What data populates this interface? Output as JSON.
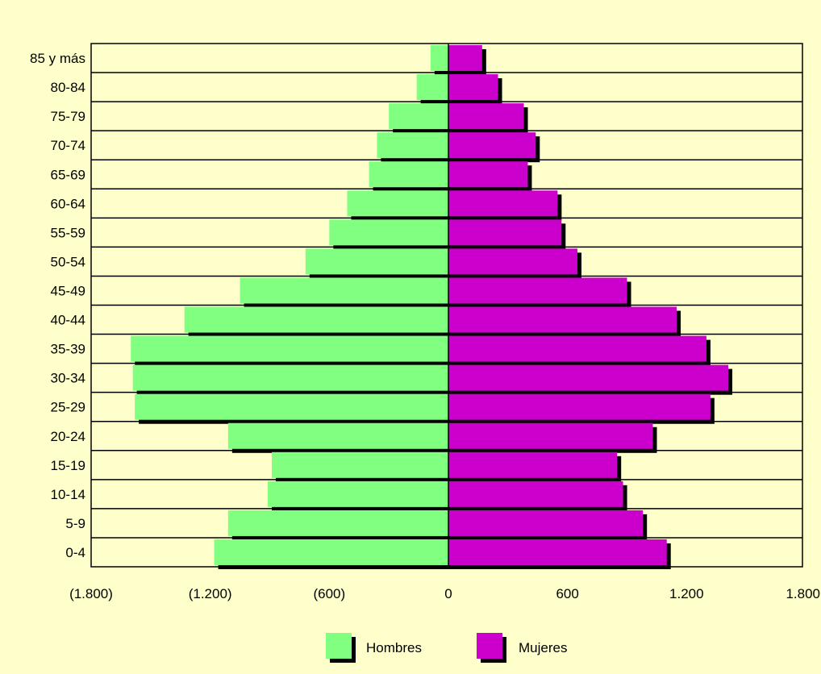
{
  "chart_data": {
    "type": "bar",
    "orientation": "horizontal",
    "title": "",
    "xlabel": "",
    "ylabel": "",
    "categories": [
      "85 y más",
      "80-84",
      "75-79",
      "70-74",
      "65-69",
      "60-64",
      "55-59",
      "50-54",
      "45-49",
      "40-44",
      "35-39",
      "30-34",
      "25-29",
      "20-24",
      "15-19",
      "10-14",
      "5-9",
      "0-4"
    ],
    "series": [
      {
        "name": "Hombres",
        "color": "#80FF80",
        "direction": "left",
        "values": [
          90,
          160,
          300,
          360,
          400,
          510,
          600,
          720,
          1050,
          1330,
          1600,
          1590,
          1580,
          1110,
          890,
          910,
          1110,
          1180
        ]
      },
      {
        "name": "Mujeres",
        "color": "#CC00CC",
        "direction": "right",
        "values": [
          170,
          250,
          380,
          440,
          400,
          550,
          570,
          650,
          900,
          1150,
          1300,
          1410,
          1320,
          1030,
          850,
          880,
          980,
          1100
        ]
      }
    ],
    "xlim": [
      -1800,
      1800
    ],
    "xticks": [
      -1800,
      -1200,
      -600,
      0,
      600,
      1200,
      1800
    ],
    "xtick_labels": [
      "(1.800)",
      "(1.200)",
      "(600)",
      "0",
      "600",
      "1.200",
      "1.800"
    ],
    "grid": "horizontal lines between age groups",
    "legend_position": "bottom-center",
    "background_color": "#FFFFCC",
    "shadow_color": "#000000"
  }
}
